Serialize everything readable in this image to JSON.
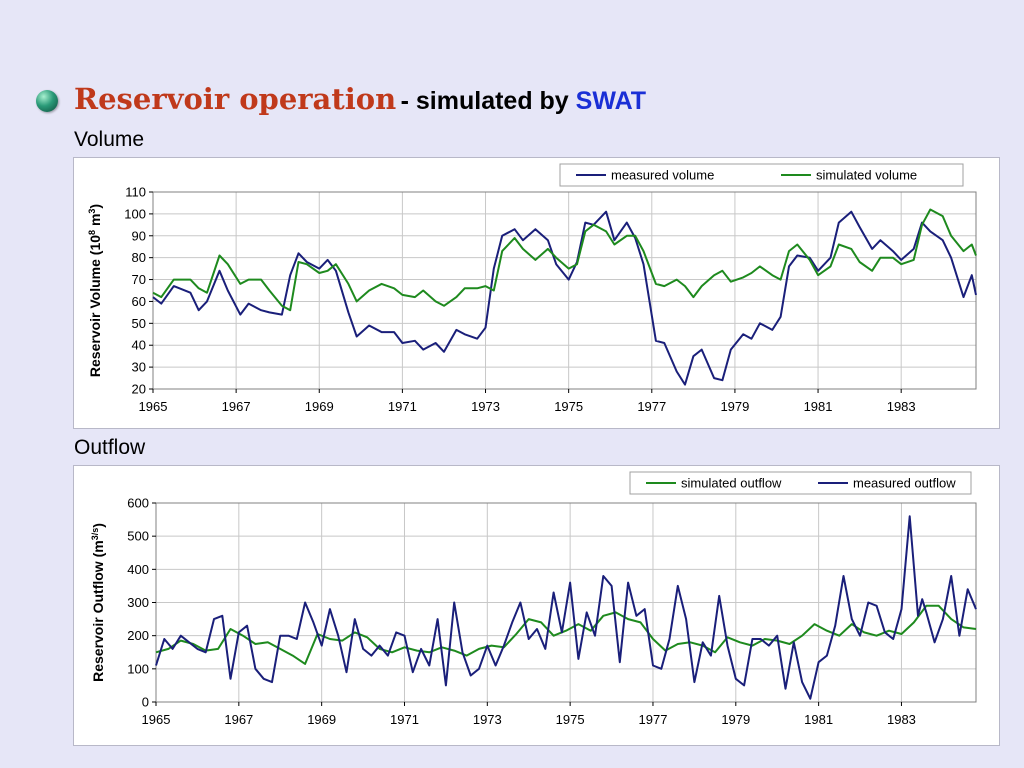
{
  "heading": {
    "main": "Reservoir operation",
    "sub": "- simulated by ",
    "swat": "SWAT"
  },
  "sections": {
    "volume_label": "Volume",
    "outflow_label": "Outflow"
  },
  "colors": {
    "measured": "#1a1f7a",
    "simulated": "#1e8a1e",
    "title_red": "#c0391b",
    "swat_blue": "#1a2fd6",
    "background": "#e6e6f7"
  },
  "chart_data": [
    {
      "type": "line",
      "ylabel": "Reservoir Volume (10^8 m^3)",
      "ylim": [
        20,
        110
      ],
      "yticks": [
        20,
        30,
        40,
        50,
        60,
        70,
        80,
        90,
        100,
        110
      ],
      "xlim": [
        1965,
        1984.8
      ],
      "xticks": [
        1965,
        1967,
        1969,
        1971,
        1973,
        1975,
        1977,
        1979,
        1981,
        1983
      ],
      "grid": true,
      "legend_position": "top-right",
      "series": [
        {
          "name": "measured volume",
          "x": [
            1965.0,
            1965.2,
            1965.5,
            1965.9,
            1966.1,
            1966.3,
            1966.6,
            1966.8,
            1967.1,
            1967.3,
            1967.6,
            1967.8,
            1968.1,
            1968.3,
            1968.5,
            1968.7,
            1969.0,
            1969.2,
            1969.4,
            1969.7,
            1969.9,
            1970.2,
            1970.5,
            1970.8,
            1971.0,
            1971.3,
            1971.5,
            1971.8,
            1972.0,
            1972.3,
            1972.5,
            1972.8,
            1973.0,
            1973.2,
            1973.4,
            1973.7,
            1973.9,
            1974.2,
            1974.5,
            1974.7,
            1975.0,
            1975.2,
            1975.4,
            1975.6,
            1975.9,
            1976.1,
            1976.4,
            1976.6,
            1976.8,
            1977.1,
            1977.3,
            1977.6,
            1977.8,
            1978.0,
            1978.2,
            1978.5,
            1978.7,
            1978.9,
            1979.2,
            1979.4,
            1979.6,
            1979.9,
            1980.1,
            1980.3,
            1980.5,
            1980.8,
            1981.0,
            1981.3,
            1981.5,
            1981.8,
            1982.0,
            1982.3,
            1982.5,
            1982.8,
            1983.0,
            1983.3,
            1983.5,
            1983.7,
            1984.0,
            1984.2,
            1984.5,
            1984.7,
            1984.8
          ],
          "values": [
            62,
            59,
            67,
            64,
            56,
            60,
            74,
            65,
            54,
            59,
            56,
            55,
            54,
            72,
            82,
            78,
            75,
            79,
            74,
            55,
            44,
            49,
            46,
            46,
            41,
            42,
            38,
            41,
            37,
            47,
            45,
            43,
            48,
            75,
            90,
            93,
            88,
            93,
            88,
            77,
            70,
            78,
            96,
            95,
            101,
            88,
            96,
            89,
            77,
            42,
            41,
            28,
            22,
            35,
            38,
            25,
            24,
            38,
            45,
            43,
            50,
            47,
            53,
            76,
            81,
            80,
            74,
            80,
            96,
            101,
            94,
            84,
            88,
            83,
            79,
            84,
            96,
            92,
            88,
            80,
            62,
            72,
            63
          ]
        },
        {
          "name": "simulated volume",
          "x": [
            1965.0,
            1965.2,
            1965.5,
            1965.9,
            1966.1,
            1966.3,
            1966.6,
            1966.8,
            1967.1,
            1967.3,
            1967.6,
            1967.8,
            1968.1,
            1968.3,
            1968.5,
            1968.7,
            1969.0,
            1969.2,
            1969.4,
            1969.7,
            1969.9,
            1970.2,
            1970.5,
            1970.8,
            1971.0,
            1971.3,
            1971.5,
            1971.8,
            1972.0,
            1972.3,
            1972.5,
            1972.8,
            1973.0,
            1973.2,
            1973.4,
            1973.7,
            1973.9,
            1974.2,
            1974.5,
            1974.7,
            1975.0,
            1975.2,
            1975.4,
            1975.6,
            1975.9,
            1976.1,
            1976.4,
            1976.6,
            1976.8,
            1977.1,
            1977.3,
            1977.6,
            1977.8,
            1978.0,
            1978.2,
            1978.5,
            1978.7,
            1978.9,
            1979.2,
            1979.4,
            1979.6,
            1979.9,
            1980.1,
            1980.3,
            1980.5,
            1980.8,
            1981.0,
            1981.3,
            1981.5,
            1981.8,
            1982.0,
            1982.3,
            1982.5,
            1982.8,
            1983.0,
            1983.3,
            1983.5,
            1983.7,
            1984.0,
            1984.2,
            1984.5,
            1984.7,
            1984.8
          ],
          "values": [
            64,
            62,
            70,
            70,
            66,
            64,
            81,
            77,
            68,
            70,
            70,
            65,
            58,
            56,
            78,
            77,
            73,
            74,
            77,
            68,
            60,
            65,
            68,
            66,
            63,
            62,
            65,
            60,
            58,
            62,
            66,
            66,
            67,
            65,
            83,
            89,
            84,
            79,
            84,
            80,
            75,
            77,
            92,
            95,
            92,
            86,
            90,
            90,
            83,
            68,
            67,
            70,
            67,
            62,
            67,
            72,
            74,
            69,
            71,
            73,
            76,
            72,
            70,
            83,
            86,
            79,
            72,
            76,
            86,
            84,
            78,
            74,
            80,
            80,
            77,
            79,
            95,
            102,
            99,
            90,
            83,
            86,
            81
          ]
        }
      ]
    },
    {
      "type": "line",
      "ylabel": "Reservoir Outflow (m^3/s)",
      "ylim": [
        0,
        600
      ],
      "yticks": [
        0,
        100,
        200,
        300,
        400,
        500,
        600
      ],
      "xlim": [
        1965,
        1984.8
      ],
      "xticks": [
        1965,
        1967,
        1969,
        1971,
        1973,
        1975,
        1977,
        1979,
        1981,
        1983
      ],
      "grid": true,
      "legend_position": "top-right",
      "series": [
        {
          "name": "simulated outflow",
          "x": [
            1965.0,
            1965.3,
            1965.6,
            1965.9,
            1966.2,
            1966.5,
            1966.8,
            1967.1,
            1967.4,
            1967.7,
            1968.0,
            1968.3,
            1968.6,
            1968.9,
            1969.2,
            1969.5,
            1969.8,
            1970.1,
            1970.4,
            1970.7,
            1971.0,
            1971.3,
            1971.6,
            1971.9,
            1972.2,
            1972.5,
            1972.8,
            1973.1,
            1973.4,
            1973.7,
            1974.0,
            1974.3,
            1974.6,
            1974.9,
            1975.2,
            1975.5,
            1975.8,
            1976.1,
            1976.4,
            1976.7,
            1977.0,
            1977.3,
            1977.6,
            1977.9,
            1978.2,
            1978.5,
            1978.8,
            1979.1,
            1979.4,
            1979.7,
            1980.0,
            1980.3,
            1980.6,
            1980.9,
            1981.2,
            1981.5,
            1981.8,
            1982.1,
            1982.4,
            1982.7,
            1983.0,
            1983.3,
            1983.6,
            1983.9,
            1984.2,
            1984.5,
            1984.8
          ],
          "values": [
            150,
            160,
            185,
            175,
            155,
            160,
            220,
            200,
            175,
            180,
            160,
            140,
            115,
            205,
            190,
            185,
            210,
            195,
            160,
            150,
            165,
            155,
            150,
            165,
            155,
            140,
            160,
            170,
            165,
            205,
            250,
            240,
            200,
            215,
            235,
            215,
            260,
            270,
            250,
            240,
            190,
            155,
            175,
            180,
            170,
            150,
            195,
            180,
            170,
            190,
            185,
            175,
            200,
            235,
            215,
            200,
            235,
            210,
            200,
            215,
            205,
            240,
            290,
            290,
            250,
            225,
            220
          ]
        },
        {
          "name": "measured outflow",
          "x": [
            1965.0,
            1965.2,
            1965.4,
            1965.6,
            1965.8,
            1966.0,
            1966.2,
            1966.4,
            1966.6,
            1966.8,
            1967.0,
            1967.2,
            1967.4,
            1967.6,
            1967.8,
            1968.0,
            1968.2,
            1968.4,
            1968.6,
            1968.8,
            1969.0,
            1969.2,
            1969.4,
            1969.6,
            1969.8,
            1970.0,
            1970.2,
            1970.4,
            1970.6,
            1970.8,
            1971.0,
            1971.2,
            1971.4,
            1971.6,
            1971.8,
            1972.0,
            1972.2,
            1972.4,
            1972.6,
            1972.8,
            1973.0,
            1973.2,
            1973.4,
            1973.6,
            1973.8,
            1974.0,
            1974.2,
            1974.4,
            1974.6,
            1974.8,
            1975.0,
            1975.2,
            1975.4,
            1975.6,
            1975.8,
            1976.0,
            1976.2,
            1976.4,
            1976.6,
            1976.8,
            1977.0,
            1977.2,
            1977.4,
            1977.6,
            1977.8,
            1978.0,
            1978.2,
            1978.4,
            1978.6,
            1978.8,
            1979.0,
            1979.2,
            1979.4,
            1979.6,
            1979.8,
            1980.0,
            1980.2,
            1980.4,
            1980.6,
            1980.8,
            1981.0,
            1981.2,
            1981.4,
            1981.6,
            1981.8,
            1982.0,
            1982.2,
            1982.4,
            1982.6,
            1982.8,
            1983.0,
            1983.2,
            1983.4,
            1983.5,
            1983.6,
            1983.8,
            1984.0,
            1984.2,
            1984.4,
            1984.6,
            1984.8
          ],
          "values": [
            110,
            190,
            160,
            200,
            180,
            160,
            150,
            250,
            260,
            70,
            210,
            230,
            100,
            70,
            60,
            200,
            200,
            190,
            300,
            240,
            170,
            280,
            200,
            90,
            250,
            160,
            140,
            170,
            140,
            210,
            200,
            90,
            160,
            110,
            250,
            50,
            300,
            150,
            80,
            100,
            170,
            110,
            170,
            240,
            300,
            190,
            220,
            160,
            330,
            210,
            360,
            130,
            270,
            200,
            380,
            350,
            120,
            360,
            260,
            280,
            110,
            100,
            190,
            350,
            250,
            60,
            180,
            140,
            320,
            170,
            70,
            50,
            190,
            190,
            170,
            200,
            40,
            180,
            60,
            10,
            120,
            140,
            230,
            380,
            250,
            200,
            300,
            290,
            210,
            190,
            280,
            560,
            260,
            310,
            270,
            180,
            250,
            380,
            200,
            340,
            280
          ]
        }
      ]
    }
  ]
}
